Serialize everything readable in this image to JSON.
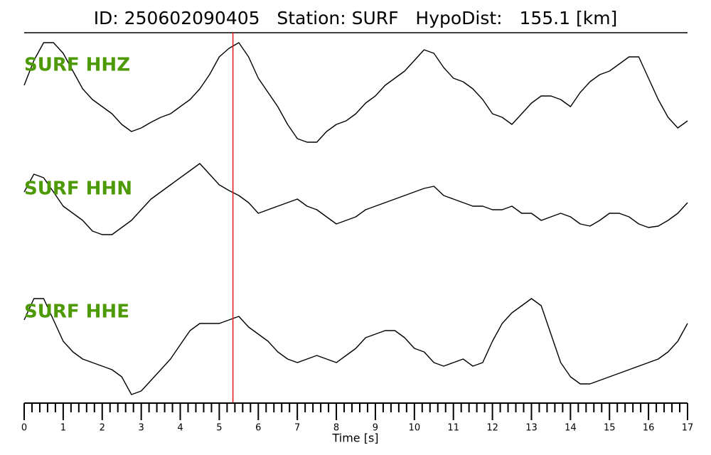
{
  "chart_data": {
    "type": "line",
    "title": "ID: 250602090405   Station: SURF   HypoDist:   155.1 [km]",
    "xlabel": "Time [s]",
    "xlim": [
      0,
      17
    ],
    "xticks": [
      0,
      1,
      2,
      3,
      4,
      5,
      6,
      7,
      8,
      9,
      10,
      11,
      12,
      13,
      14,
      15,
      16,
      17
    ],
    "ylim": [
      -90,
      90
    ],
    "label_color": "#4e9a06",
    "vline": {
      "x": 5.35,
      "color": "#e8141c"
    },
    "x": [
      0,
      0.25,
      0.5,
      0.75,
      1,
      1.25,
      1.5,
      1.75,
      2,
      2.25,
      2.5,
      2.75,
      3,
      3.25,
      3.5,
      3.75,
      4,
      4.25,
      4.5,
      4.75,
      5,
      5.25,
      5.5,
      5.75,
      6,
      6.25,
      6.5,
      6.75,
      7,
      7.25,
      7.5,
      7.75,
      8,
      8.25,
      8.5,
      8.75,
      9,
      9.25,
      9.5,
      9.75,
      10,
      10.25,
      10.5,
      10.75,
      11,
      11.25,
      11.5,
      11.75,
      12,
      12.25,
      12.5,
      12.75,
      13,
      13.25,
      13.5,
      13.75,
      14,
      14.25,
      14.5,
      14.75,
      15,
      15.25,
      15.5,
      15.75,
      16,
      16.25,
      16.5,
      16.75,
      17
    ],
    "series": [
      {
        "name": "SURF HHZ",
        "color": "#000000",
        "values": [
          10,
          45,
          70,
          70,
          55,
          30,
          5,
          -10,
          -20,
          -30,
          -45,
          -55,
          -50,
          -42,
          -35,
          -30,
          -20,
          -10,
          5,
          25,
          50,
          62,
          70,
          50,
          20,
          0,
          -20,
          -45,
          -65,
          -70,
          -70,
          -55,
          -45,
          -40,
          -30,
          -15,
          -5,
          10,
          20,
          30,
          45,
          60,
          55,
          35,
          20,
          15,
          5,
          -10,
          -30,
          -35,
          -45,
          -30,
          -15,
          -5,
          -5,
          -10,
          -20,
          0,
          15,
          25,
          30,
          40,
          50,
          50,
          20,
          -10,
          -35,
          -50,
          -40
        ]
      },
      {
        "name": "SURF HHN",
        "color": "#000000",
        "values": [
          15,
          40,
          35,
          15,
          -5,
          -15,
          -25,
          -40,
          -45,
          -45,
          -35,
          -25,
          -10,
          5,
          15,
          25,
          35,
          45,
          55,
          40,
          25,
          17,
          10,
          0,
          -15,
          -10,
          -5,
          0,
          5,
          -5,
          -10,
          -20,
          -30,
          -25,
          -20,
          -10,
          -5,
          0,
          5,
          10,
          15,
          20,
          23,
          10,
          5,
          0,
          -5,
          -5,
          -10,
          -10,
          -5,
          -15,
          -15,
          -25,
          -20,
          -15,
          -20,
          -30,
          -33,
          -25,
          -15,
          -15,
          -20,
          -30,
          -35,
          -33,
          -25,
          -15,
          0
        ]
      },
      {
        "name": "SURF HHE",
        "color": "#000000",
        "values": [
          30,
          60,
          60,
          30,
          0,
          -15,
          -25,
          -30,
          -35,
          -40,
          -50,
          -75,
          -70,
          -55,
          -40,
          -25,
          -5,
          15,
          25,
          25,
          25,
          30,
          35,
          20,
          10,
          0,
          -15,
          -25,
          -30,
          -25,
          -20,
          -25,
          -30,
          -20,
          -10,
          5,
          10,
          15,
          15,
          5,
          -10,
          -15,
          -30,
          -35,
          -30,
          -25,
          -35,
          -30,
          0,
          25,
          40,
          50,
          60,
          50,
          10,
          -30,
          -50,
          -60,
          -60,
          -55,
          -50,
          -45,
          -40,
          -35,
          -30,
          -25,
          -15,
          0,
          25
        ]
      }
    ]
  }
}
